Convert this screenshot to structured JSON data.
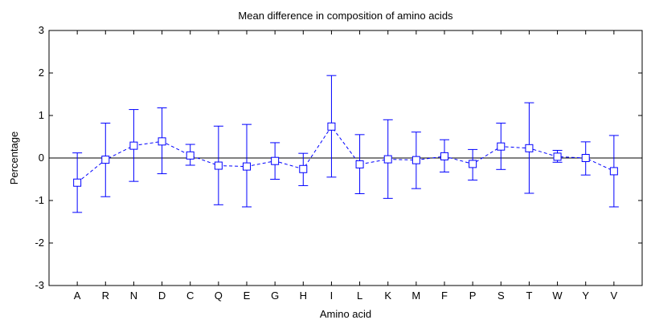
{
  "chart_data": {
    "type": "scatter",
    "title": "Mean difference in composition of amino acids",
    "xlabel": "Amino acid",
    "ylabel": "Percentage",
    "ylim": [
      -3,
      3
    ],
    "yticks": [
      -3,
      -2,
      -1,
      0,
      1,
      2,
      3
    ],
    "ytick_labels": [
      "-3",
      "-2",
      "-1",
      "0",
      "1",
      "2",
      "3"
    ],
    "categories": [
      "A",
      "R",
      "N",
      "D",
      "C",
      "Q",
      "E",
      "G",
      "H",
      "I",
      "L",
      "K",
      "M",
      "F",
      "P",
      "S",
      "T",
      "W",
      "Y",
      "V"
    ],
    "values": [
      -0.58,
      -0.04,
      0.29,
      0.39,
      0.06,
      -0.18,
      -0.2,
      -0.07,
      -0.26,
      0.74,
      -0.15,
      -0.03,
      -0.05,
      0.04,
      -0.14,
      0.27,
      0.23,
      0.03,
      0.0,
      -0.31
    ],
    "error_low": [
      -1.28,
      -0.91,
      -0.55,
      -0.37,
      -0.17,
      -1.1,
      -1.15,
      -0.5,
      -0.65,
      -0.45,
      -0.84,
      -0.95,
      -0.72,
      -0.33,
      -0.52,
      -0.27,
      -0.83,
      -0.1,
      -0.4,
      -1.15
    ],
    "error_high": [
      0.12,
      0.82,
      1.14,
      1.18,
      0.32,
      0.75,
      0.79,
      0.36,
      0.11,
      1.94,
      0.55,
      0.9,
      0.61,
      0.43,
      0.2,
      0.82,
      1.3,
      0.18,
      0.38,
      0.53
    ],
    "marker": "square",
    "line_style": "dashed",
    "reference_line": 0,
    "color": "#0000ff",
    "grid": false
  }
}
